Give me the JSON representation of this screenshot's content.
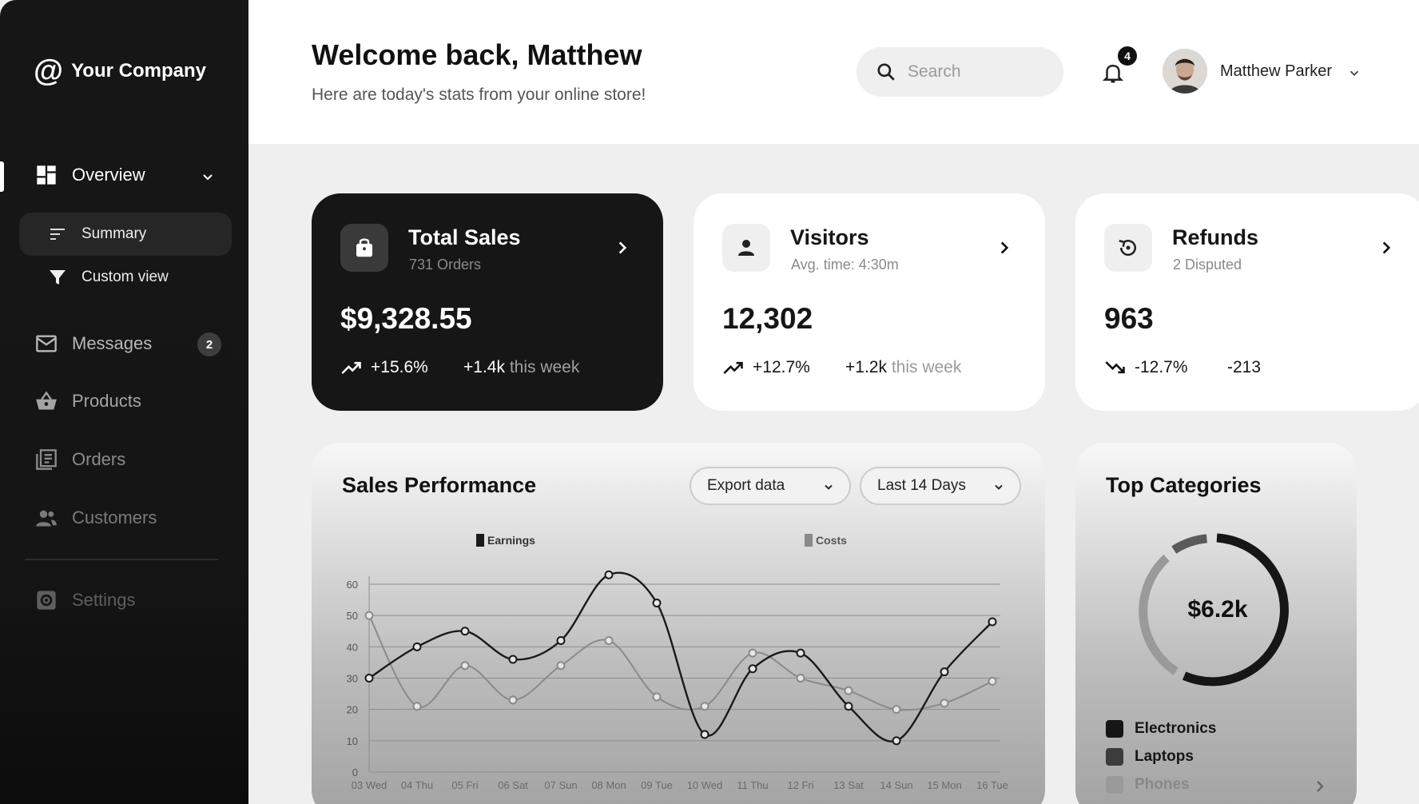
{
  "sidebar": {
    "brand": "Your Company",
    "brand_symbol": "@",
    "nav": {
      "overview": "Overview",
      "summary": "Summary",
      "custom_view": "Custom view",
      "messages": "Messages",
      "messages_badge": "2",
      "products": "Products",
      "orders": "Orders",
      "customers": "Customers",
      "settings": "Settings"
    }
  },
  "header": {
    "title": "Welcome back, Matthew",
    "subtitle": "Here are today's stats from your online store!",
    "search_placeholder": "Search",
    "notification_count": "4",
    "user_name": "Matthew Parker"
  },
  "cards": {
    "sales": {
      "title": "Total Sales",
      "sub": "731 Orders",
      "value": "$9,328.55",
      "pct": "+15.6%",
      "delta": "+1.4k",
      "delta_suffix": "this week"
    },
    "visitors": {
      "title": "Visitors",
      "sub": "Avg. time: 4:30m",
      "value": "12,302",
      "pct": "+12.7%",
      "delta": "+1.2k",
      "delta_suffix": "this week"
    },
    "refunds": {
      "title": "Refunds",
      "sub": "2 Disputed",
      "value": "963",
      "pct": "-12.7%",
      "delta": "-213",
      "delta_suffix": ""
    }
  },
  "sales_performance": {
    "title": "Sales Performance",
    "export_label": "Export data",
    "range_label": "Last 14 Days"
  },
  "chart_data": {
    "type": "line",
    "title": "Sales Performance",
    "x": [
      "03 Wed",
      "04 Thu",
      "05 Fri",
      "06 Sat",
      "07 Sun",
      "08 Mon",
      "09 Tue",
      "10 Wed",
      "11 Thu",
      "12 Fri",
      "13 Sat",
      "14 Sun",
      "15 Mon",
      "16 Tue"
    ],
    "y_ticks": [
      0,
      10,
      20,
      30,
      40,
      50,
      60
    ],
    "ylim": [
      0,
      60
    ],
    "grid": true,
    "legend_position": "top",
    "series": [
      {
        "name": "Earnings",
        "color": "#1a1a1a",
        "values": [
          30,
          40,
          45,
          36,
          42,
          63,
          54,
          12,
          33,
          38,
          21,
          10,
          32,
          48
        ]
      },
      {
        "name": "Costs",
        "color": "#8a8a8a",
        "values": [
          50,
          21,
          34,
          23,
          34,
          42,
          24,
          21,
          38,
          30,
          26,
          20,
          22,
          29
        ]
      }
    ]
  },
  "top_categories": {
    "title": "Top Categories",
    "total": "$6.2k",
    "items": [
      {
        "name": "Electronics",
        "color": "#161616"
      },
      {
        "name": "Laptops",
        "color": "#3c3c3c"
      },
      {
        "name": "Phones",
        "color": "#9a9a9a"
      }
    ]
  }
}
